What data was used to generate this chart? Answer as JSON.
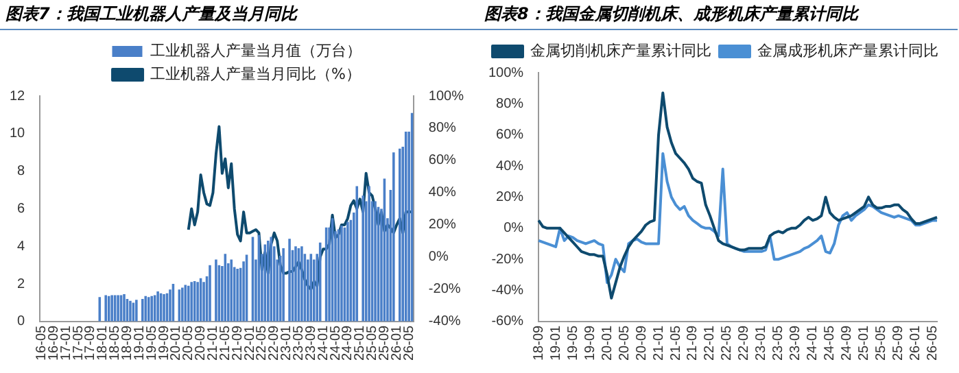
{
  "chart_data": [
    {
      "type": "bar",
      "title": "图表7：我国工业机器人产量及当月同比",
      "categories": [
        "16-05",
        null,
        null,
        null,
        "16-09",
        null,
        null,
        null,
        "17-01",
        null,
        null,
        null,
        "17-05",
        null,
        null,
        null,
        "17-09",
        null,
        null,
        null,
        "18-01",
        null,
        null,
        null,
        "18-05",
        null,
        null,
        null,
        "18-09",
        null,
        null,
        null,
        "19-01",
        null,
        null,
        null,
        "19-05",
        null,
        null,
        null,
        "19-09",
        null,
        null,
        null,
        "20-01",
        null,
        null,
        null,
        "20-05",
        null,
        null,
        null,
        "20-09",
        null,
        null,
        null,
        "21-01",
        null,
        null,
        null,
        "21-05",
        null,
        null,
        null,
        "21-09",
        null,
        null,
        null,
        "22-01",
        null,
        null,
        null,
        "22-05",
        null,
        null,
        null,
        "22-09",
        null,
        null,
        null,
        "23-01",
        null,
        null,
        null,
        "23-05",
        null,
        null,
        null,
        "23-09",
        null,
        null,
        null,
        "24-01",
        null,
        null,
        null,
        "24-05",
        null,
        null,
        null,
        "24-09",
        null,
        null,
        null,
        "25-01",
        null,
        null,
        null,
        "25-05",
        null,
        null,
        null,
        "25-09",
        null,
        null,
        null,
        "26-01",
        null,
        null,
        null,
        "26-05",
        null
      ],
      "series": [
        {
          "name": "工业机器人产量当月值（万台）",
          "type": "bar",
          "color": "#4a7fc8",
          "values": [
            null,
            null,
            null,
            null,
            null,
            null,
            null,
            null,
            null,
            null,
            null,
            null,
            null,
            null,
            null,
            null,
            null,
            null,
            null,
            1.3,
            null,
            1.4,
            1.35,
            1.4,
            1.4,
            1.4,
            1.4,
            1.45,
            1.2,
            1.1,
            1.0,
            1.15,
            null,
            1.2,
            1.35,
            1.3,
            1.35,
            1.4,
            1.6,
            1.5,
            1.45,
            1.5,
            1.7,
            2.0,
            null,
            1.7,
            1.8,
            1.95,
            1.9,
            2.1,
            2.15,
            2.1,
            2.3,
            2.1,
            2.4,
            3.0,
            null,
            3.3,
            3.0,
            2.95,
            3.6,
            3.1,
            3.3,
            2.9,
            2.8,
            2.85,
            3.2,
            3.55,
            null,
            4.5,
            3.3,
            4.6,
            3.6,
            4.1,
            4.3,
            4.5,
            4.0,
            3.3,
            3.5,
            3.9,
            null,
            4.4,
            3.8,
            4.0,
            3.9,
            4.0,
            3.6,
            3.3,
            3.6,
            3.3,
            3.6,
            4.2,
            null,
            5.0,
            5.0,
            5.5,
            4.8,
            4.9,
            5.1,
            5.0,
            5.3,
            5.4,
            5.8,
            7.2,
            null,
            6.7,
            6.4,
            7.2,
            6.4,
            6.4,
            6.1,
            6.0,
            7.6,
            5.5,
            7.0,
            9.0,
            null,
            9.2,
            9.3,
            10.1,
            10.1,
            11.1
          ]
        },
        {
          "name": "工业机器人产量当月同比（%）",
          "type": "line",
          "axis": "y2",
          "color": "#0e4a6e",
          "values": [
            null,
            null,
            null,
            null,
            null,
            null,
            null,
            null,
            null,
            null,
            null,
            null,
            null,
            null,
            null,
            null,
            null,
            null,
            null,
            null,
            null,
            null,
            null,
            null,
            null,
            null,
            null,
            null,
            null,
            null,
            null,
            null,
            null,
            null,
            null,
            null,
            null,
            null,
            null,
            null,
            null,
            null,
            null,
            null,
            null,
            null,
            null,
            null,
            17,
            30,
            20,
            28,
            51,
            40,
            33,
            32,
            40,
            64,
            81,
            52,
            61,
            43,
            58,
            30,
            14,
            10,
            28,
            15,
            15,
            16,
            17,
            15,
            -8,
            3,
            -10,
            8,
            15,
            10,
            -5,
            -10,
            -10,
            -9,
            -9,
            -6,
            -3,
            -8,
            -14,
            -18,
            -20,
            -15,
            -18,
            0,
            5,
            5,
            8,
            26,
            12,
            14,
            20,
            20,
            24,
            32,
            35,
            30,
            36,
            28,
            52,
            40,
            38,
            30,
            20,
            28,
            16,
            20,
            18,
            15,
            20,
            24,
            15,
            28,
            28,
            28
          ]
        }
      ],
      "ylim": [
        0,
        12
      ],
      "yticks": [
        0,
        2,
        4,
        6,
        8,
        10,
        12
      ],
      "y2lim": [
        -40,
        100
      ],
      "y2ticks": [
        {
          "value": -40,
          "label": "-40%"
        },
        {
          "value": -20,
          "label": "-20%"
        },
        {
          "value": 0,
          "label": "0%"
        },
        {
          "value": 20,
          "label": "20%"
        },
        {
          "value": 40,
          "label": "40%"
        },
        {
          "value": 60,
          "label": "60%"
        },
        {
          "value": 80,
          "label": "80%"
        },
        {
          "value": 100,
          "label": "100%"
        }
      ],
      "legend": "top",
      "grid": false,
      "marker": "none",
      "line_style": "solid"
    },
    {
      "type": "line",
      "title": "图表8：我国金属切削机床、成形机床产量累计同比",
      "categories": [
        "18-09",
        null,
        null,
        null,
        "19-01",
        null,
        null,
        null,
        "19-05",
        null,
        null,
        null,
        "19-09",
        null,
        null,
        null,
        "20-01",
        null,
        null,
        null,
        "20-05",
        null,
        null,
        null,
        "20-09",
        null,
        null,
        null,
        "21-01",
        null,
        null,
        null,
        "21-05",
        null,
        null,
        null,
        "21-09",
        null,
        null,
        null,
        "22-01",
        null,
        null,
        null,
        "22-05",
        null,
        null,
        null,
        "22-09",
        null,
        null,
        null,
        "23-01",
        null,
        null,
        null,
        "23-05",
        null,
        null,
        null,
        "23-09",
        null,
        null,
        null,
        "24-01",
        null,
        null,
        null,
        "24-05",
        null,
        null,
        null,
        "24-09",
        null,
        null,
        null,
        "25-01",
        null,
        null,
        null,
        "25-05",
        null,
        null,
        null,
        "25-09",
        null,
        null,
        null,
        "26-01",
        null,
        null,
        null,
        "26-05",
        null
      ],
      "series": [
        {
          "name": "金属切削机床产量累计同比",
          "color": "#0e4a6e",
          "values": [
            5,
            1,
            0,
            0,
            0,
            0,
            -3,
            -6,
            -9,
            -12,
            -15,
            -16,
            -17,
            -17,
            -18,
            -18,
            -30,
            -45,
            -35,
            -25,
            -18,
            -12,
            -8,
            -5,
            -2,
            2,
            4,
            5,
            60,
            87,
            65,
            55,
            48,
            45,
            42,
            38,
            32,
            30,
            29,
            15,
            8,
            0,
            -8,
            -10,
            -11,
            -12,
            -13,
            -14,
            -14,
            -13,
            -13,
            -13,
            -13,
            -12,
            -5,
            -3,
            -2,
            -3,
            -1,
            0,
            0,
            2,
            5,
            7,
            5,
            6,
            8,
            20,
            10,
            7,
            5,
            6,
            7,
            8,
            10,
            12,
            14,
            20,
            15,
            13,
            13,
            14,
            14,
            15,
            15,
            12,
            10,
            6,
            3,
            3,
            4,
            5,
            6,
            7
          ]
        },
        {
          "name": "金属成形机床产量累计同比",
          "color": "#4a8fd4",
          "values": [
            -8,
            -9,
            -10,
            -11,
            -12,
            0,
            -8,
            -5,
            -6,
            -8,
            -9,
            -10,
            -9,
            -8,
            -10,
            -11,
            -35,
            -30,
            -20,
            -25,
            -28,
            -10,
            -8,
            -7,
            -9,
            -10,
            -10,
            -10,
            -10,
            48,
            30,
            20,
            15,
            12,
            14,
            8,
            5,
            3,
            1,
            0,
            0,
            -2,
            -5,
            38,
            -10,
            -12,
            -13,
            -14,
            -15,
            -15,
            -15,
            -15,
            -15,
            -14,
            -5,
            -20,
            -20,
            -19,
            -18,
            -17,
            -16,
            -15,
            -13,
            -12,
            -10,
            -8,
            -5,
            -15,
            -16,
            -10,
            2,
            8,
            10,
            5,
            8,
            10,
            12,
            15,
            14,
            12,
            10,
            9,
            8,
            7,
            8,
            7,
            6,
            5,
            2,
            2,
            3,
            4,
            5,
            5
          ]
        }
      ],
      "ylim": [
        -60,
        100
      ],
      "yticks": [
        {
          "value": -60,
          "label": "-60%"
        },
        {
          "value": -40,
          "label": "-40%"
        },
        {
          "value": -20,
          "label": "-20%"
        },
        {
          "value": 0,
          "label": "0%"
        },
        {
          "value": 20,
          "label": "20%"
        },
        {
          "value": 40,
          "label": "40%"
        },
        {
          "value": 60,
          "label": "60%"
        },
        {
          "value": 80,
          "label": "80%"
        },
        {
          "value": 100,
          "label": "100%"
        }
      ],
      "legend": "top",
      "grid": false,
      "marker": "none",
      "line_style": "solid"
    }
  ]
}
